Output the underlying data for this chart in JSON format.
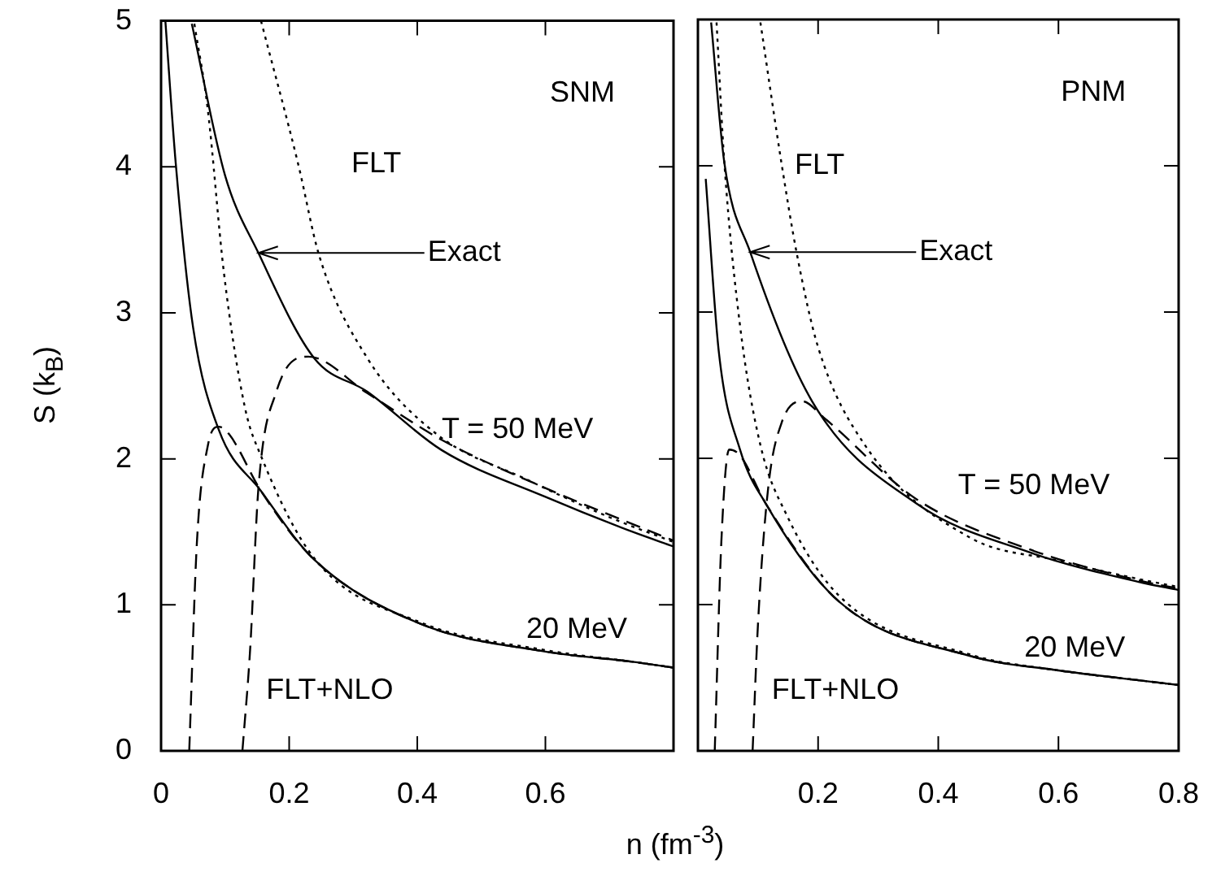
{
  "chart_data": [
    {
      "type": "line",
      "ylabel": "S (k$_{B}$)",
      "xlim": [
        0,
        0.8
      ],
      "ylim": [
        0,
        5
      ],
      "xticks": [
        0,
        0.2,
        0.4,
        0.6,
        {
          "value": 0.8,
          "label": null
        }
      ],
      "yticks": [
        0,
        1,
        2,
        3,
        4,
        5
      ],
      "grid": false,
      "legend": false,
      "series": [
        {
          "color": "#000000",
          "line_style": "solid",
          "x": [
            0.048,
            0.1,
            0.152,
            0.239,
            0.322,
            0.438,
            0.6,
            0.736,
            0.8
          ],
          "values": [
            4.98,
            3.94,
            3.41,
            2.69,
            2.46,
            2.06,
            1.74,
            1.5,
            1.4
          ]
        },
        {
          "color": "#000000",
          "line_style": "solid",
          "x": [
            0.0067,
            0.023,
            0.05,
            0.09,
            0.156,
            0.239,
            0.405,
            0.6,
            0.736,
            0.8
          ],
          "values": [
            5,
            4.02,
            2.9,
            2.2,
            1.78,
            1.31,
            0.87,
            0.68,
            0.61,
            0.57
          ]
        },
        {
          "color": "#000000",
          "line_style": "dotted",
          "x": [
            0.156,
            0.214,
            0.247,
            0.322,
            0.43,
            0.57,
            0.7,
            0.8
          ],
          "values": [
            5,
            4.02,
            3.39,
            2.69,
            2.17,
            1.86,
            1.6,
            1.43
          ]
        },
        {
          "color": "#000000",
          "line_style": "dotted",
          "x": [
            0.052,
            0.073,
            0.098,
            0.131,
            0.156,
            0.239,
            0.405,
            0.6,
            0.736,
            0.8
          ],
          "values": [
            4.98,
            4.39,
            3.28,
            2.35,
            2.02,
            1.32,
            0.88,
            0.69,
            0.61,
            0.57
          ]
        },
        {
          "color": "#000000",
          "line_style": "dashed",
          "x": [
            0.127,
            0.139,
            0.152,
            0.18,
            0.23,
            0.322,
            0.438,
            0.6,
            0.8
          ],
          "values": [
            0,
            0.69,
            1.8,
            2.46,
            2.7,
            2.45,
            2.13,
            1.8,
            1.44
          ]
        },
        {
          "color": "#000000",
          "line_style": "dashed",
          "x": [
            0.044,
            0.056,
            0.073,
            0.09,
            0.106,
            0.156,
            0.239,
            0.405,
            0.6,
            0.736,
            0.8
          ],
          "values": [
            0,
            1.43,
            2.09,
            2.22,
            2.17,
            1.78,
            1.31,
            0.87,
            0.68,
            0.61,
            0.57
          ]
        }
      ],
      "annotations": [
        "SNM",
        "FLT",
        {
          "text": "Exact",
          "x": 0.152,
          "y": 3.41
        },
        "T = 50 MeV",
        "20 MeV",
        "FLT+NLO"
      ]
    },
    {
      "type": "line",
      "xlabel": "n (fm$^{-3}$)",
      "xlim": [
        0,
        0.8
      ],
      "ylim": [
        0,
        5
      ],
      "xticks": [
        {
          "value": 0,
          "label": null
        },
        0.2,
        0.4,
        0.6,
        0.8
      ],
      "yticks": [
        0,
        1,
        2,
        3,
        4,
        5
      ],
      "tick_labels": "x",
      "grid": false,
      "legend": false,
      "series": [
        {
          "color": "#000000",
          "line_style": "solid",
          "x": [
            0.022,
            0.044,
            0.087,
            0.19,
            0.364,
            0.55,
            0.739,
            0.8
          ],
          "values": [
            4.98,
            4.02,
            3.41,
            2.39,
            1.69,
            1.36,
            1.15,
            1.1
          ]
        },
        {
          "color": "#000000",
          "line_style": "solid",
          "x": [
            0.013,
            0.035,
            0.07,
            0.113,
            0.235,
            0.452,
            0.6,
            0.739,
            0.8
          ],
          "values": [
            3.91,
            2.72,
            2.06,
            1.69,
            1.02,
            0.65,
            0.55,
            0.48,
            0.45
          ]
        },
        {
          "color": "#000000",
          "line_style": "dotted",
          "x": [
            0.104,
            0.139,
            0.165,
            0.2,
            0.278,
            0.452,
            0.6,
            0.739,
            0.8
          ],
          "values": [
            4.98,
            4.02,
            3.39,
            2.76,
            2.09,
            1.46,
            1.3,
            1.17,
            1.12
          ]
        },
        {
          "color": "#000000",
          "line_style": "dotted",
          "x": [
            0.031,
            0.044,
            0.07,
            0.104,
            0.148,
            0.235,
            0.452,
            0.6,
            0.739,
            0.8
          ],
          "values": [
            4.98,
            4.02,
            2.91,
            2.09,
            1.61,
            1.06,
            0.66,
            0.55,
            0.48,
            0.45
          ]
        },
        {
          "color": "#000000",
          "line_style": "dashed",
          "x": [
            0.091,
            0.1,
            0.117,
            0.139,
            0.174,
            0.209,
            0.364,
            0.55,
            0.739,
            0.8
          ],
          "values": [
            0,
            0.87,
            1.8,
            2.24,
            2.39,
            2.28,
            1.72,
            1.38,
            1.16,
            1.11
          ]
        },
        {
          "color": "#000000",
          "line_style": "dashed",
          "x": [
            0.028,
            0.039,
            0.052,
            0.07,
            0.113,
            0.235,
            0.452,
            0.6,
            0.739,
            0.8
          ],
          "values": [
            0,
            1.43,
            2.06,
            2.02,
            1.69,
            1.02,
            0.65,
            0.55,
            0.48,
            0.45
          ]
        }
      ],
      "annotations": [
        "PNM",
        "FLT",
        {
          "text": "Exact",
          "x": 0.087,
          "y": 3.41
        },
        "T = 50 MeV",
        "20 MeV",
        "FLT+NLO"
      ]
    }
  ]
}
